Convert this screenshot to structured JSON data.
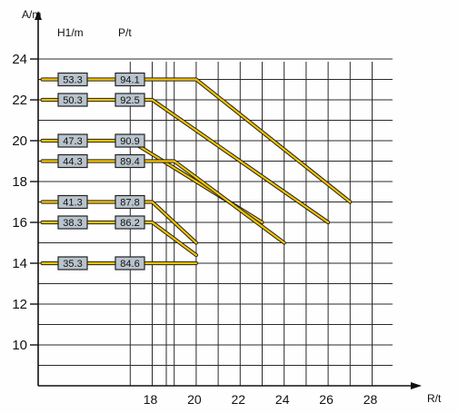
{
  "chart_data": {
    "type": "line",
    "y_axis_label": "A/m",
    "x_axis_label": "R/t",
    "box_column_headers": [
      "H1/m",
      "P/t"
    ],
    "y_ticks": [
      "24",
      "22",
      "20",
      "18",
      "16",
      "14",
      "12",
      "10"
    ],
    "x_ticks": [
      "18",
      "20",
      "22",
      "24",
      "26",
      "28"
    ],
    "ylim": [
      8,
      25
    ],
    "xlim": [
      13,
      29
    ],
    "grid": true,
    "series_color": "#f5c400",
    "outline_color": "#222222",
    "box_fill": "#b9c3cc",
    "series": [
      {
        "h1": "53.3",
        "p": "94.1",
        "points": [
          [
            13,
            23
          ],
          [
            20,
            23
          ],
          [
            27,
            17
          ]
        ]
      },
      {
        "h1": "50.3",
        "p": "92.5",
        "points": [
          [
            13,
            22
          ],
          [
            18,
            22
          ],
          [
            26,
            16
          ]
        ]
      },
      {
        "h1": "47.3",
        "p": "90.9",
        "points": [
          [
            13,
            20
          ],
          [
            17,
            20
          ],
          [
            23,
            16
          ]
        ]
      },
      {
        "h1": "44.3",
        "p": "89.4",
        "points": [
          [
            13,
            19
          ],
          [
            19,
            19
          ],
          [
            24,
            15
          ]
        ]
      },
      {
        "h1": "41.3",
        "p": "87.8",
        "points": [
          [
            13,
            17
          ],
          [
            18,
            17
          ],
          [
            20,
            15
          ]
        ]
      },
      {
        "h1": "38.3",
        "p": "86.2",
        "points": [
          [
            13,
            16
          ],
          [
            18,
            16
          ],
          [
            20,
            14.4
          ]
        ]
      },
      {
        "h1": "35.3",
        "p": "84.6",
        "points": [
          [
            13,
            14
          ],
          [
            20,
            14
          ]
        ]
      }
    ]
  }
}
